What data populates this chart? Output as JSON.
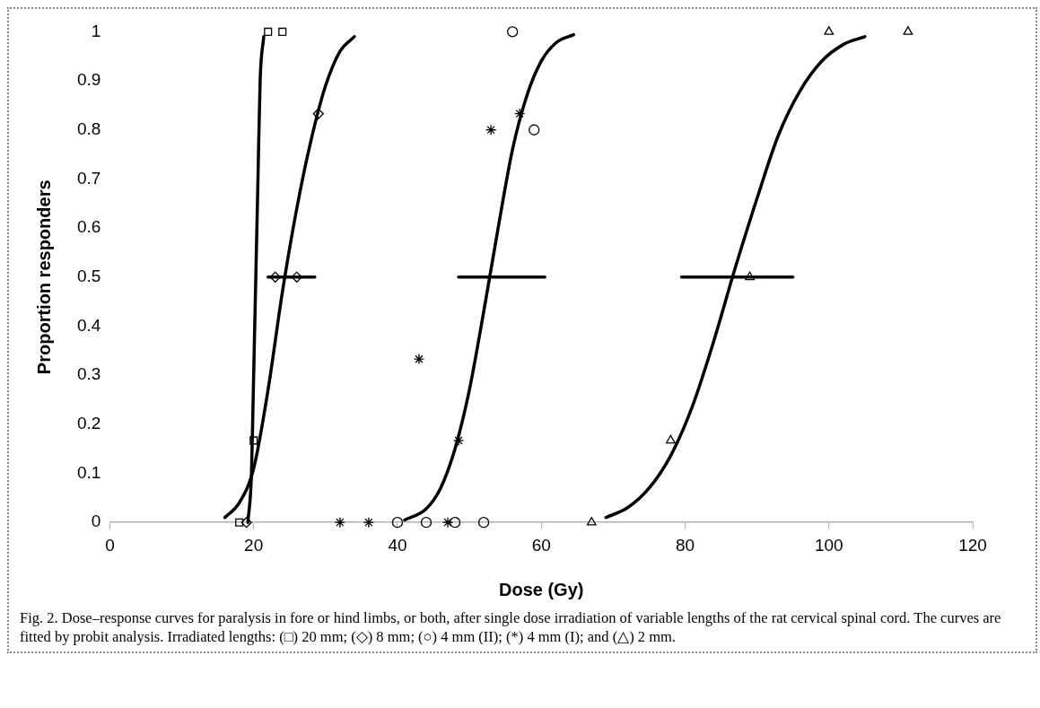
{
  "chart_data": {
    "type": "scatter",
    "xlabel": "Dose (Gy)",
    "ylabel": "Proportion responders",
    "xlim": [
      0,
      120
    ],
    "xticks": [
      0,
      20,
      40,
      60,
      80,
      100,
      120
    ],
    "ylim": [
      0,
      1
    ],
    "yticks": [
      0,
      0.1,
      0.2,
      0.3,
      0.4,
      0.5,
      0.6,
      0.7,
      0.8,
      0.9,
      1
    ],
    "annotations": [
      "Fig. 2. Dose–response curves for paralysis in fore or hind limbs, or both, after single dose irradiation of variable lengths of the rat cervical spinal cord. The curves are fitted by probit analysis. Irradiated lengths: (□) 20 mm; (◇) 8 mm; (○) 4 mm (II); (*) 4 mm (I); and (△) 2 mm."
    ],
    "series": [
      {
        "type": "line",
        "color": "#000000",
        "marker": "none",
        "line_style": "solid",
        "x": [
          19.2,
          19.7,
          20.0,
          20.3,
          20.6,
          20.9,
          21.4
        ],
        "values": [
          0,
          0.1,
          0.3,
          0.5,
          0.7,
          0.9,
          0.99
        ]
      },
      {
        "type": "line",
        "color": "#000000",
        "marker": "none",
        "line_style": "solid",
        "x": [
          16,
          18,
          20,
          22,
          24,
          26,
          28,
          30,
          32,
          34
        ],
        "values": [
          0.01,
          0.04,
          0.11,
          0.27,
          0.47,
          0.64,
          0.78,
          0.89,
          0.96,
          0.99
        ]
      },
      {
        "type": "line",
        "color": "#000000",
        "marker": "none",
        "line_style": "solid",
        "x": [
          41,
          44,
          46,
          48,
          50,
          52,
          54,
          56,
          58,
          60,
          62,
          64.5
        ],
        "values": [
          0.005,
          0.028,
          0.07,
          0.15,
          0.27,
          0.43,
          0.6,
          0.76,
          0.87,
          0.94,
          0.977,
          0.994
        ]
      },
      {
        "type": "line",
        "color": "#000000",
        "marker": "none",
        "line_style": "solid",
        "x": [
          69,
          72,
          75,
          78,
          81,
          84,
          87,
          90,
          93,
          96,
          99,
          102,
          105
        ],
        "values": [
          0.01,
          0.03,
          0.07,
          0.136,
          0.236,
          0.37,
          0.52,
          0.66,
          0.79,
          0.88,
          0.94,
          0.974,
          0.99
        ]
      },
      {
        "type": "line",
        "color": "#000000",
        "marker": "none",
        "line_style": "solid",
        "x": [
          22,
          28.5
        ],
        "values": [
          0.5,
          0.5
        ]
      },
      {
        "type": "line",
        "color": "#000000",
        "marker": "none",
        "line_style": "solid",
        "x": [
          48.5,
          60.5
        ],
        "values": [
          0.5,
          0.5
        ]
      },
      {
        "type": "line",
        "color": "#000000",
        "marker": "none",
        "line_style": "solid",
        "x": [
          79.5,
          95
        ],
        "values": [
          0.5,
          0.5
        ]
      },
      {
        "type": "scatter",
        "color": "#000000",
        "marker": "square",
        "x": [
          18,
          20,
          22,
          24
        ],
        "values": [
          0,
          0.167,
          1,
          1
        ]
      },
      {
        "type": "scatter",
        "color": "#000000",
        "marker": "diamond",
        "x": [
          19,
          23,
          26,
          29
        ],
        "values": [
          0,
          0.5,
          0.5,
          0.833
        ]
      },
      {
        "type": "scatter",
        "color": "#000000",
        "marker": "circle",
        "x": [
          40,
          44,
          48,
          52,
          56,
          59
        ],
        "values": [
          0,
          0,
          0,
          0,
          1,
          0.8
        ]
      },
      {
        "type": "scatter",
        "color": "#000000",
        "marker": "cross",
        "x": [
          32,
          36,
          47,
          43,
          48.5,
          53,
          57
        ],
        "values": [
          0,
          0,
          0,
          0.333,
          0.167,
          0.8,
          0.833
        ]
      },
      {
        "type": "scatter",
        "color": "#000000",
        "marker": "triangle",
        "x": [
          67,
          78,
          89,
          100,
          111
        ],
        "values": [
          0,
          0.167,
          0.5,
          1,
          1
        ]
      }
    ]
  }
}
